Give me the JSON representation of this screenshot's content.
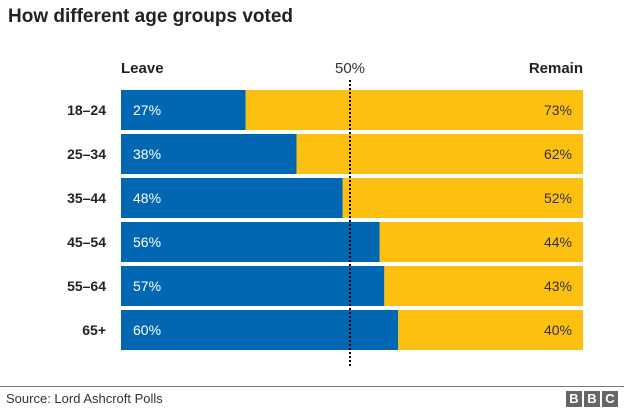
{
  "title": "How different age groups voted",
  "source": "Source: Lord Ashcroft Polls",
  "logo": "BBC",
  "chart_data": {
    "type": "bar",
    "stacked": true,
    "orientation": "horizontal",
    "title": "How different age groups voted",
    "categories": [
      "18–24",
      "25–34",
      "35–44",
      "45–54",
      "55–64",
      "65+"
    ],
    "series": [
      {
        "name": "Leave",
        "color": "#0068b3",
        "values": [
          27,
          38,
          48,
          56,
          57,
          60
        ],
        "labels": [
          "27%",
          "38%",
          "48%",
          "56%",
          "57%",
          "60%"
        ]
      },
      {
        "name": "Remain",
        "color": "#fdbf10",
        "values": [
          73,
          62,
          52,
          44,
          43,
          40
        ],
        "labels": [
          "73%",
          "62%",
          "52%",
          "44%",
          "43%",
          "40%"
        ]
      }
    ],
    "reference_line": {
      "value": 50,
      "label": "50%",
      "style": "dotted"
    },
    "xlim": [
      0,
      100
    ]
  }
}
